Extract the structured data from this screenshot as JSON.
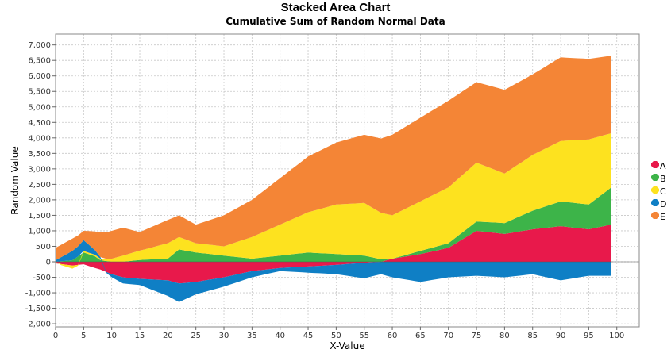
{
  "chart_data": {
    "type": "area",
    "stacked": true,
    "title": "Stacked Area Chart",
    "subtitle": "Cumulative Sum of Random Normal Data",
    "xlabel": "X-Value",
    "ylabel": "Random Value",
    "xlim": [
      0,
      104
    ],
    "ylim": [
      -2100,
      7350
    ],
    "xticks": [
      0,
      5,
      10,
      15,
      20,
      25,
      30,
      35,
      40,
      45,
      50,
      55,
      60,
      65,
      70,
      75,
      80,
      85,
      90,
      95,
      100
    ],
    "yticks": [
      -2000,
      -1500,
      -1000,
      -500,
      0,
      500,
      1000,
      1500,
      2000,
      2500,
      3000,
      3500,
      4000,
      4500,
      5000,
      5500,
      6000,
      6500,
      7000
    ],
    "ytick_labels": [
      "-2,000",
      "-1,500",
      "-1,000",
      "-500",
      "0",
      "500",
      "1,000",
      "1,500",
      "2,000",
      "2,500",
      "3,000",
      "3,500",
      "4,000",
      "4,500",
      "5,000",
      "5,500",
      "6,000",
      "6,500",
      "7,000"
    ],
    "grid": true,
    "legend_position": "right",
    "x_keypoints": [
      0,
      3,
      5,
      7,
      8,
      10,
      12,
      15,
      20,
      22,
      25,
      30,
      35,
      40,
      45,
      50,
      55,
      58,
      60,
      65,
      70,
      75,
      80,
      85,
      90,
      95,
      99
    ],
    "series": [
      {
        "name": "A",
        "color": "#e8194b",
        "values": [
          -50,
          -120,
          -80,
          -200,
          -250,
          -400,
          -500,
          -550,
          -600,
          -700,
          -650,
          -500,
          -300,
          -200,
          -150,
          -100,
          -30,
          0,
          100,
          250,
          450,
          1000,
          900,
          1050,
          1150,
          1050,
          1200
        ]
      },
      {
        "name": "B",
        "color": "#3db449",
        "values": [
          0,
          50,
          300,
          180,
          50,
          0,
          0,
          60,
          100,
          400,
          300,
          200,
          100,
          200,
          300,
          250,
          200,
          80,
          0,
          100,
          150,
          300,
          350,
          600,
          800,
          800,
          1200
        ]
      },
      {
        "name": "C",
        "color": "#fde21f",
        "values": [
          0,
          -100,
          50,
          50,
          50,
          100,
          200,
          300,
          500,
          400,
          300,
          300,
          700,
          1000,
          1300,
          1600,
          1700,
          1500,
          1400,
          1600,
          1800,
          1900,
          1600,
          1800,
          1950,
          2100,
          1750
        ]
      },
      {
        "name": "D",
        "color": "#0f7fc5",
        "values": [
          50,
          300,
          350,
          150,
          50,
          -100,
          -200,
          -200,
          -500,
          -600,
          -400,
          -300,
          -200,
          -100,
          -200,
          -300,
          -500,
          -400,
          -500,
          -650,
          -500,
          -450,
          -500,
          -400,
          -600,
          -450,
          -450
        ]
      },
      {
        "name": "E",
        "color": "#f48536",
        "values": [
          400,
          400,
          300,
          600,
          800,
          900,
          900,
          600,
          750,
          700,
          600,
          1000,
          1200,
          1500,
          1800,
          2000,
          2200,
          2400,
          2600,
          2700,
          2800,
          2600,
          2700,
          2600,
          2700,
          2600,
          2500
        ]
      }
    ]
  }
}
